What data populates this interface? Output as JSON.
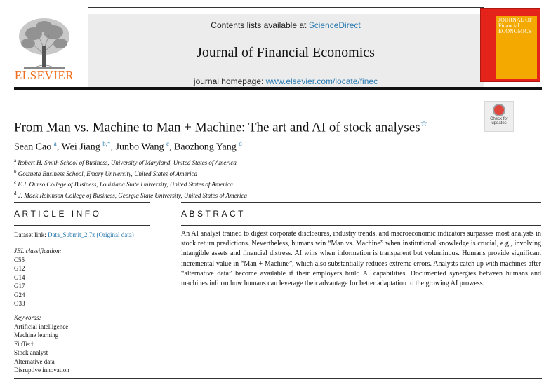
{
  "header": {
    "contents_prefix": "Contents lists available at ",
    "contents_link": "ScienceDirect",
    "journal_name": "Journal of Financial Economics",
    "homepage_prefix": "journal homepage: ",
    "homepage_link": "www.elsevier.com/locate/finec",
    "publisher": "ELSEVIER",
    "cover_title": "JOURNAL OF Financial ECONOMICS"
  },
  "check_updates": {
    "line1": "Check for",
    "line2": "updates"
  },
  "article": {
    "title": "From Man vs. Machine to Man + Machine: The art and AI of stock analyses",
    "title_star": "☆",
    "authors": [
      {
        "name": "Sean Cao",
        "sup": "a",
        "sep": ", "
      },
      {
        "name": "Wei Jiang",
        "sup": "b,*",
        "sep": ", "
      },
      {
        "name": "Junbo Wang",
        "sup": "c",
        "sep": ", "
      },
      {
        "name": "Baozhong Yang",
        "sup": "d",
        "sep": ""
      }
    ],
    "affiliations": [
      {
        "sup": "a",
        "text": "Robert H. Smith School of Business, University of Maryland, United States of America"
      },
      {
        "sup": "b",
        "text": "Goizueta Business School, Emory University, United States of America"
      },
      {
        "sup": "c",
        "text": "E.J. Ourso College of Business, Louisiana State University, United States of America"
      },
      {
        "sup": "d",
        "text": "J. Mack Robinson College of Business, Georgia State University, United States of America"
      }
    ]
  },
  "article_info": {
    "heading": "ARTICLE INFO",
    "dataset_prefix": "Dataset link: ",
    "dataset_link": "Data_Submit_2.7z (Original data)",
    "jel_label": "JEL classification:",
    "jel_codes": [
      "C55",
      "G12",
      "G14",
      "G17",
      "G24",
      "O33"
    ],
    "keywords_label": "Keywords:",
    "keywords": [
      "Artificial intelligence",
      "Machine learning",
      "FinTech",
      "Stock analyst",
      "Alternative data",
      "Disruptive innovation"
    ]
  },
  "abstract": {
    "heading": "ABSTRACT",
    "text": "An AI analyst trained to digest corporate disclosures, industry trends, and macroeconomic indicators surpasses most analysts in stock return predictions. Nevertheless, humans win “Man vs. Machine” when institutional knowledge is crucial, e.g., involving intangible assets and financial distress. AI wins when information is transparent but voluminous. Humans provide significant incremental value in “Man + Machine”, which also substantially reduces extreme errors. Analysts catch up with machines after “alternative data” become available if their employers build AI capabilities. Documented synergies between humans and machines inform how humans can leverage their advantage for better adaptation to the growing AI prowess."
  }
}
